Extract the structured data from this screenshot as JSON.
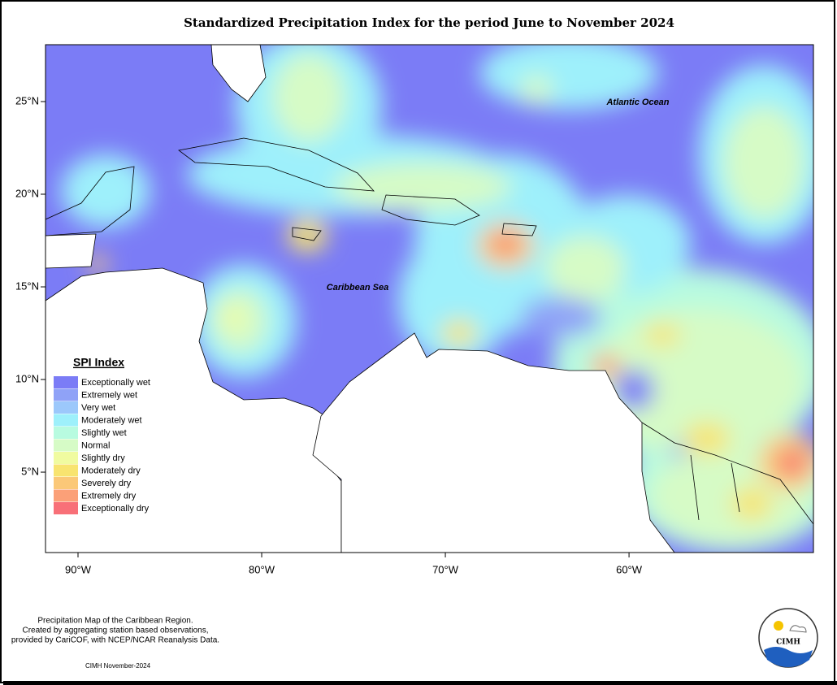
{
  "map": {
    "title": "Standardized Precipitation Index for the period June to November 2024",
    "xlim": [
      -91.77,
      -49.96
    ],
    "ylim": [
      0.66,
      28.07
    ],
    "yticks": [
      {
        "value": 25,
        "label": "25°N"
      },
      {
        "value": 20,
        "label": "20°N"
      },
      {
        "value": 15,
        "label": "15°N"
      },
      {
        "value": 10,
        "label": "10°N"
      },
      {
        "value": 5,
        "label": "5°N"
      }
    ],
    "xticks": [
      {
        "value": -90,
        "label": "90°W"
      },
      {
        "value": -80,
        "label": "80°W"
      },
      {
        "value": -70,
        "label": "70°W"
      },
      {
        "value": -60,
        "label": "60°W"
      }
    ],
    "annotations": [
      "Atlantic Ocean",
      "Caribbean Sea"
    ],
    "legend": {
      "title": "SPI Index",
      "items": [
        {
          "label": "Exceptionally wet",
          "color": "#7b7cf6"
        },
        {
          "label": "Extremely wet",
          "color": "#8fa2f7"
        },
        {
          "label": "Very wet",
          "color": "#9cc8fb"
        },
        {
          "label": "Moderately wet",
          "color": "#9ef0fb"
        },
        {
          "label": "Slightly wet",
          "color": "#b8fbe0"
        },
        {
          "label": "Normal",
          "color": "#d6fbc6"
        },
        {
          "label": "Slightly dry",
          "color": "#f0fba0"
        },
        {
          "label": "Moderately dry",
          "color": "#f8e470"
        },
        {
          "label": "Severely dry",
          "color": "#fbc878"
        },
        {
          "label": "Extremely dry",
          "color": "#fba078"
        },
        {
          "label": "Exceptionally dry",
          "color": "#f87078"
        }
      ]
    },
    "footnote": [
      "Precipitation Map of the Caribbean Region.",
      "Created by aggregating station based observations,",
      "provided by CariCOF, with NCEP/NCAR Reanalysis Data."
    ],
    "credit": "CIMH November-2024",
    "logo": "CIMH"
  }
}
